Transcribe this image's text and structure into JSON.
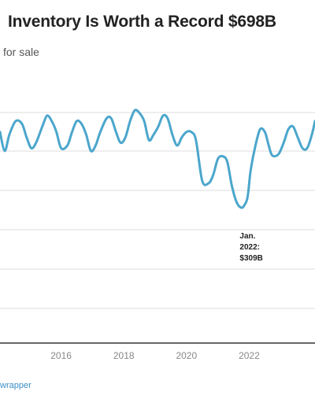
{
  "header": {
    "title": "Inventory Is Worth a Record $698B",
    "subtitle": "for sale"
  },
  "footer": {
    "source": "wrapper"
  },
  "colors": {
    "line": "#4ba6cc",
    "grid": "#dddddd",
    "axis": "#333333"
  },
  "chart_data": {
    "type": "line",
    "xlim": [
      2014.05,
      2024.1
    ],
    "ylim": [
      0,
      1
    ],
    "grid": true,
    "x_ticks": [
      2016,
      2018,
      2020,
      2022
    ],
    "x_tick_labels": [
      "2016",
      "2018",
      "2020",
      "2022"
    ],
    "annotations": [
      {
        "lines": [
          "Jan.",
          "2022:",
          "$309B"
        ],
        "x": 2022.0
      }
    ],
    "series": [
      {
        "x": [
          2014.05,
          2014.2,
          2014.35,
          2014.55,
          2014.75,
          2014.9,
          2015.05,
          2015.2,
          2015.4,
          2015.55,
          2015.7,
          2015.85,
          2016.0,
          2016.2,
          2016.35,
          2016.5,
          2016.65,
          2016.8,
          2016.95,
          2017.1,
          2017.25,
          2017.45,
          2017.6,
          2017.75,
          2017.9,
          2018.05,
          2018.2,
          2018.35,
          2018.5,
          2018.65,
          2018.8,
          2018.95,
          2019.1,
          2019.25,
          2019.4,
          2019.55,
          2019.7,
          2019.85,
          2020.0,
          2020.15,
          2020.3,
          2020.5,
          2020.7,
          2020.85,
          2021.0,
          2021.15,
          2021.3,
          2021.45,
          2021.6,
          2021.75,
          2021.85,
          2021.95,
          2022.05,
          2022.2,
          2022.35,
          2022.5,
          2022.6,
          2022.7,
          2022.8,
          2022.95,
          2023.1,
          2023.25,
          2023.4,
          2023.55,
          2023.7,
          2023.85,
          2024.0,
          2024.1
        ],
        "y": [
          0.78,
          0.71,
          0.77,
          0.82,
          0.81,
          0.76,
          0.72,
          0.74,
          0.8,
          0.84,
          0.82,
          0.78,
          0.72,
          0.73,
          0.78,
          0.82,
          0.81,
          0.77,
          0.71,
          0.73,
          0.78,
          0.83,
          0.83,
          0.78,
          0.74,
          0.76,
          0.82,
          0.86,
          0.85,
          0.82,
          0.75,
          0.77,
          0.8,
          0.84,
          0.83,
          0.77,
          0.73,
          0.76,
          0.78,
          0.78,
          0.75,
          0.6,
          0.59,
          0.62,
          0.68,
          0.69,
          0.67,
          0.58,
          0.52,
          0.5,
          0.51,
          0.54,
          0.64,
          0.73,
          0.79,
          0.78,
          0.74,
          0.7,
          0.69,
          0.7,
          0.74,
          0.79,
          0.8,
          0.76,
          0.72,
          0.72,
          0.77,
          0.82
        ]
      }
    ]
  }
}
